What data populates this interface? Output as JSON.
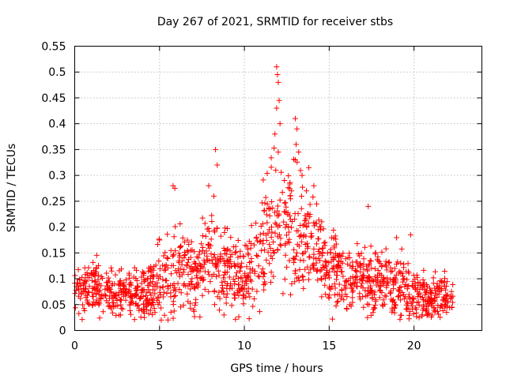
{
  "chart_data": {
    "type": "scatter",
    "title": "Day 267 of 2021, SRMTID for receiver stbs",
    "xlabel": "GPS time / hours",
    "ylabel": "SRMTID / TECUs",
    "xlim": [
      0,
      24
    ],
    "ylim": [
      0,
      0.55
    ],
    "x_ticks": [
      0,
      5,
      10,
      15,
      20
    ],
    "x_tick_labels": [
      "0",
      "5",
      "10",
      "15",
      "20"
    ],
    "y_ticks": [
      0,
      0.05,
      0.1,
      0.15,
      0.2,
      0.25,
      0.3,
      0.35,
      0.4,
      0.45,
      0.5,
      0.55
    ],
    "y_tick_labels": [
      "0",
      "0.05",
      "0.1",
      "0.15",
      "0.2",
      "0.25",
      "0.3",
      "0.35",
      "0.4",
      "0.45",
      "0.5",
      "0.55"
    ],
    "grid": true,
    "marker": "+",
    "color": "#ff0000",
    "x_range_of_data": [
      0,
      22.3
    ],
    "envelope": {
      "x": [
        0,
        1,
        2,
        3,
        4,
        5,
        6,
        7,
        8,
        9,
        10,
        11,
        12,
        13,
        14,
        15,
        16,
        17,
        18,
        19,
        20,
        21,
        22.3
      ],
      "center": [
        0.08,
        0.085,
        0.075,
        0.075,
        0.07,
        0.1,
        0.11,
        0.105,
        0.13,
        0.12,
        0.1,
        0.16,
        0.21,
        0.19,
        0.18,
        0.12,
        0.1,
        0.1,
        0.1,
        0.09,
        0.075,
        0.06,
        0.07
      ],
      "spread": [
        0.03,
        0.035,
        0.03,
        0.03,
        0.035,
        0.05,
        0.06,
        0.05,
        0.07,
        0.06,
        0.045,
        0.07,
        0.09,
        0.08,
        0.07,
        0.05,
        0.045,
        0.05,
        0.045,
        0.045,
        0.035,
        0.03,
        0.035
      ]
    },
    "peaks": [
      {
        "x": 5.8,
        "y": 0.28
      },
      {
        "x": 5.9,
        "y": 0.275
      },
      {
        "x": 7.9,
        "y": 0.28
      },
      {
        "x": 8.3,
        "y": 0.35
      },
      {
        "x": 8.4,
        "y": 0.32
      },
      {
        "x": 8.2,
        "y": 0.26
      },
      {
        "x": 11.9,
        "y": 0.51
      },
      {
        "x": 11.95,
        "y": 0.495
      },
      {
        "x": 12.0,
        "y": 0.48
      },
      {
        "x": 12.05,
        "y": 0.445
      },
      {
        "x": 11.9,
        "y": 0.43
      },
      {
        "x": 12.1,
        "y": 0.4
      },
      {
        "x": 11.8,
        "y": 0.38
      },
      {
        "x": 12.0,
        "y": 0.345
      },
      {
        "x": 11.85,
        "y": 0.31
      },
      {
        "x": 13.0,
        "y": 0.41
      },
      {
        "x": 13.1,
        "y": 0.39
      },
      {
        "x": 13.05,
        "y": 0.36
      },
      {
        "x": 13.2,
        "y": 0.345
      },
      {
        "x": 13.0,
        "y": 0.33
      },
      {
        "x": 13.4,
        "y": 0.3
      },
      {
        "x": 13.8,
        "y": 0.315
      },
      {
        "x": 17.3,
        "y": 0.24
      },
      {
        "x": 19.8,
        "y": 0.185
      },
      {
        "x": 5.1,
        "y": 0.02
      },
      {
        "x": 4.1,
        "y": 0.025
      },
      {
        "x": 20.3,
        "y": 0.025
      }
    ]
  }
}
